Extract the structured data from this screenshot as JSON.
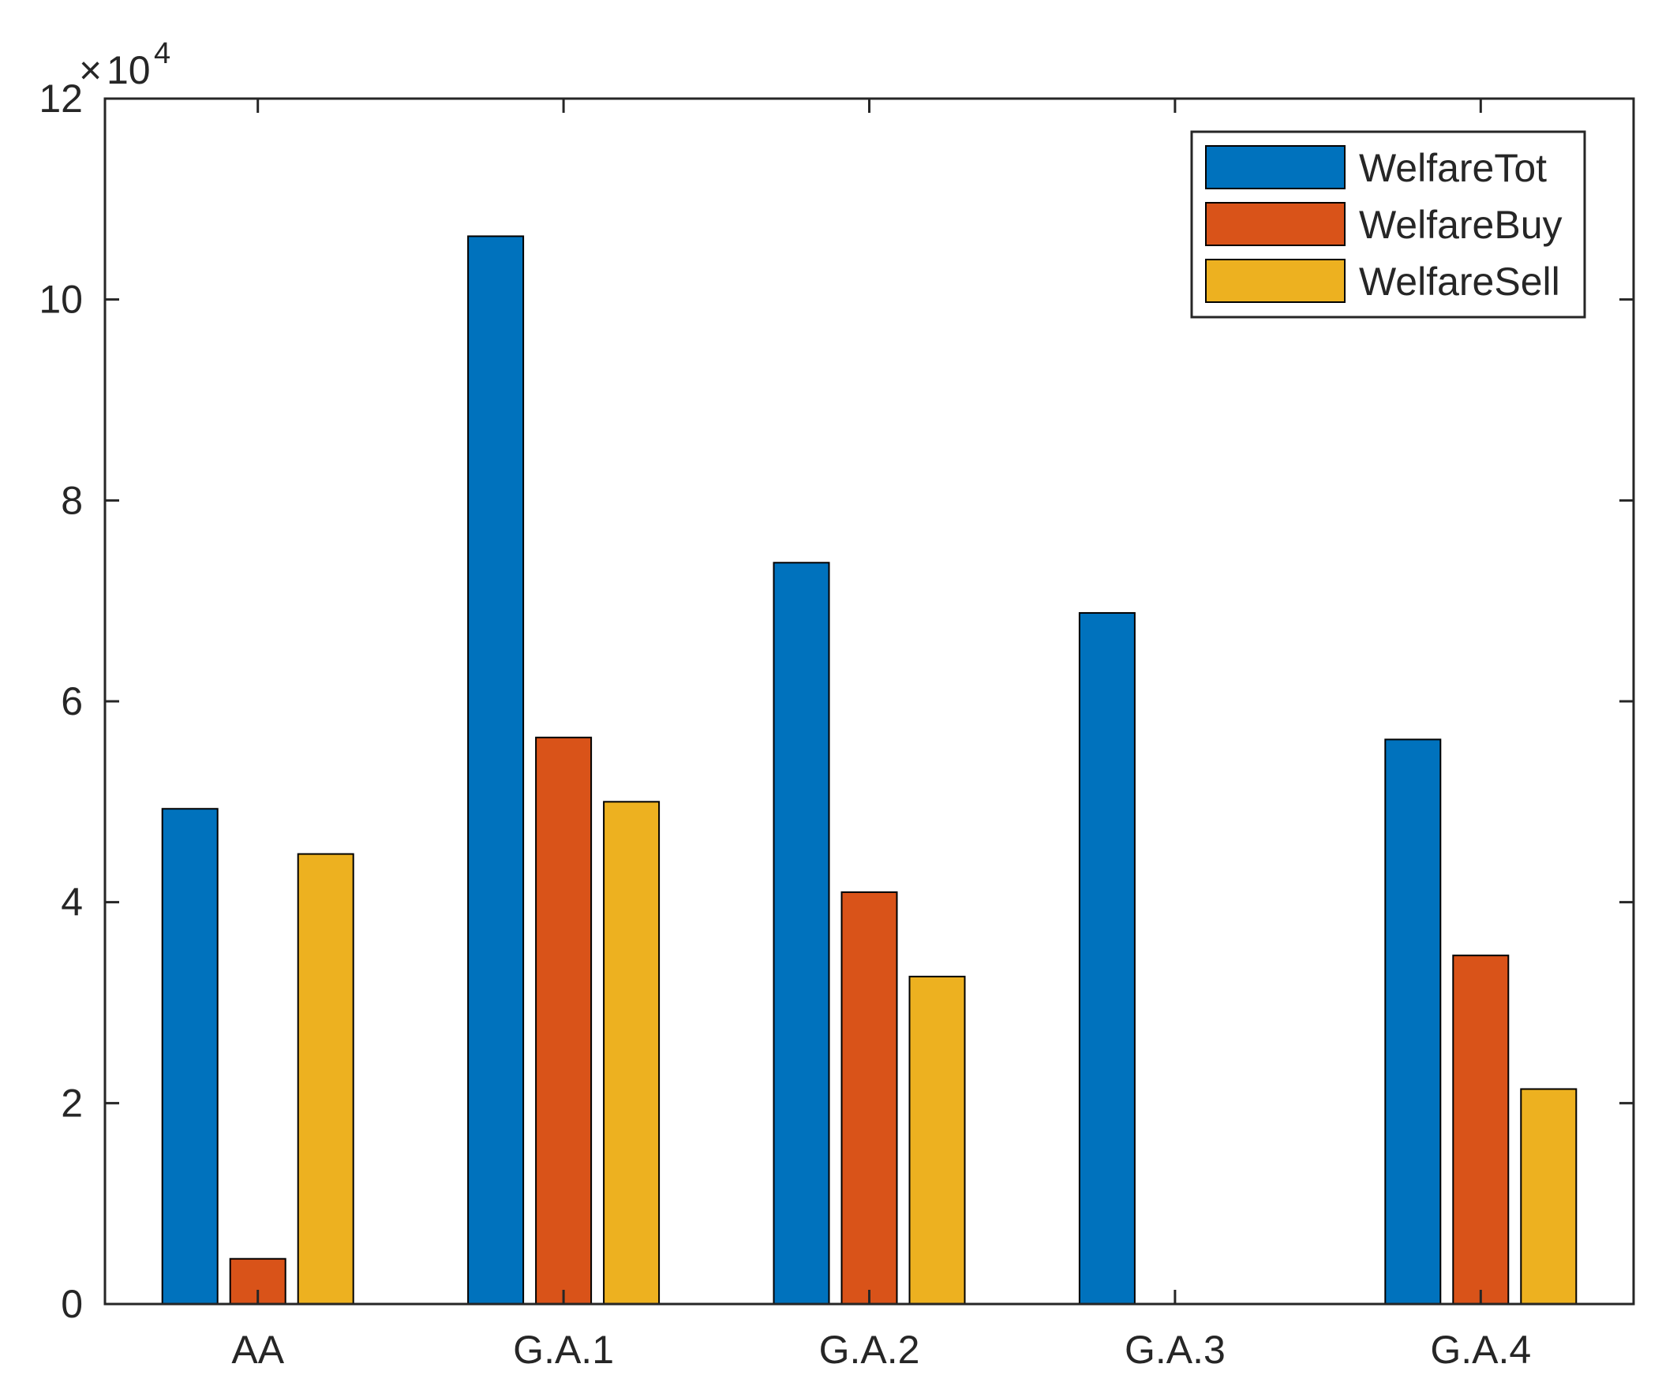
{
  "chart_data": {
    "type": "bar",
    "categories": [
      "AA",
      "G.A.1",
      "G.A.2",
      "G.A.3",
      "G.A.4"
    ],
    "series": [
      {
        "name": "WelfareTot",
        "color": "#0072BD",
        "values": [
          49300,
          106300,
          73800,
          68800,
          56200
        ]
      },
      {
        "name": "WelfareBuy",
        "color": "#D95319",
        "values": [
          4500,
          56400,
          41000,
          0,
          34700
        ]
      },
      {
        "name": "WelfareSell",
        "color": "#EDB120",
        "values": [
          44800,
          50000,
          32600,
          0,
          21400
        ]
      }
    ],
    "ylim": [
      0,
      120000
    ],
    "yticks": [
      0,
      20000,
      40000,
      60000,
      80000,
      100000,
      120000
    ],
    "ytick_labels": [
      "0",
      "2",
      "4",
      "6",
      "8",
      "10",
      "12"
    ],
    "y_exponent": {
      "base": "10",
      "power": "4",
      "prefix": "×"
    },
    "legend_position": "top-right",
    "grid": false,
    "title": "",
    "xlabel": "",
    "ylabel": ""
  }
}
